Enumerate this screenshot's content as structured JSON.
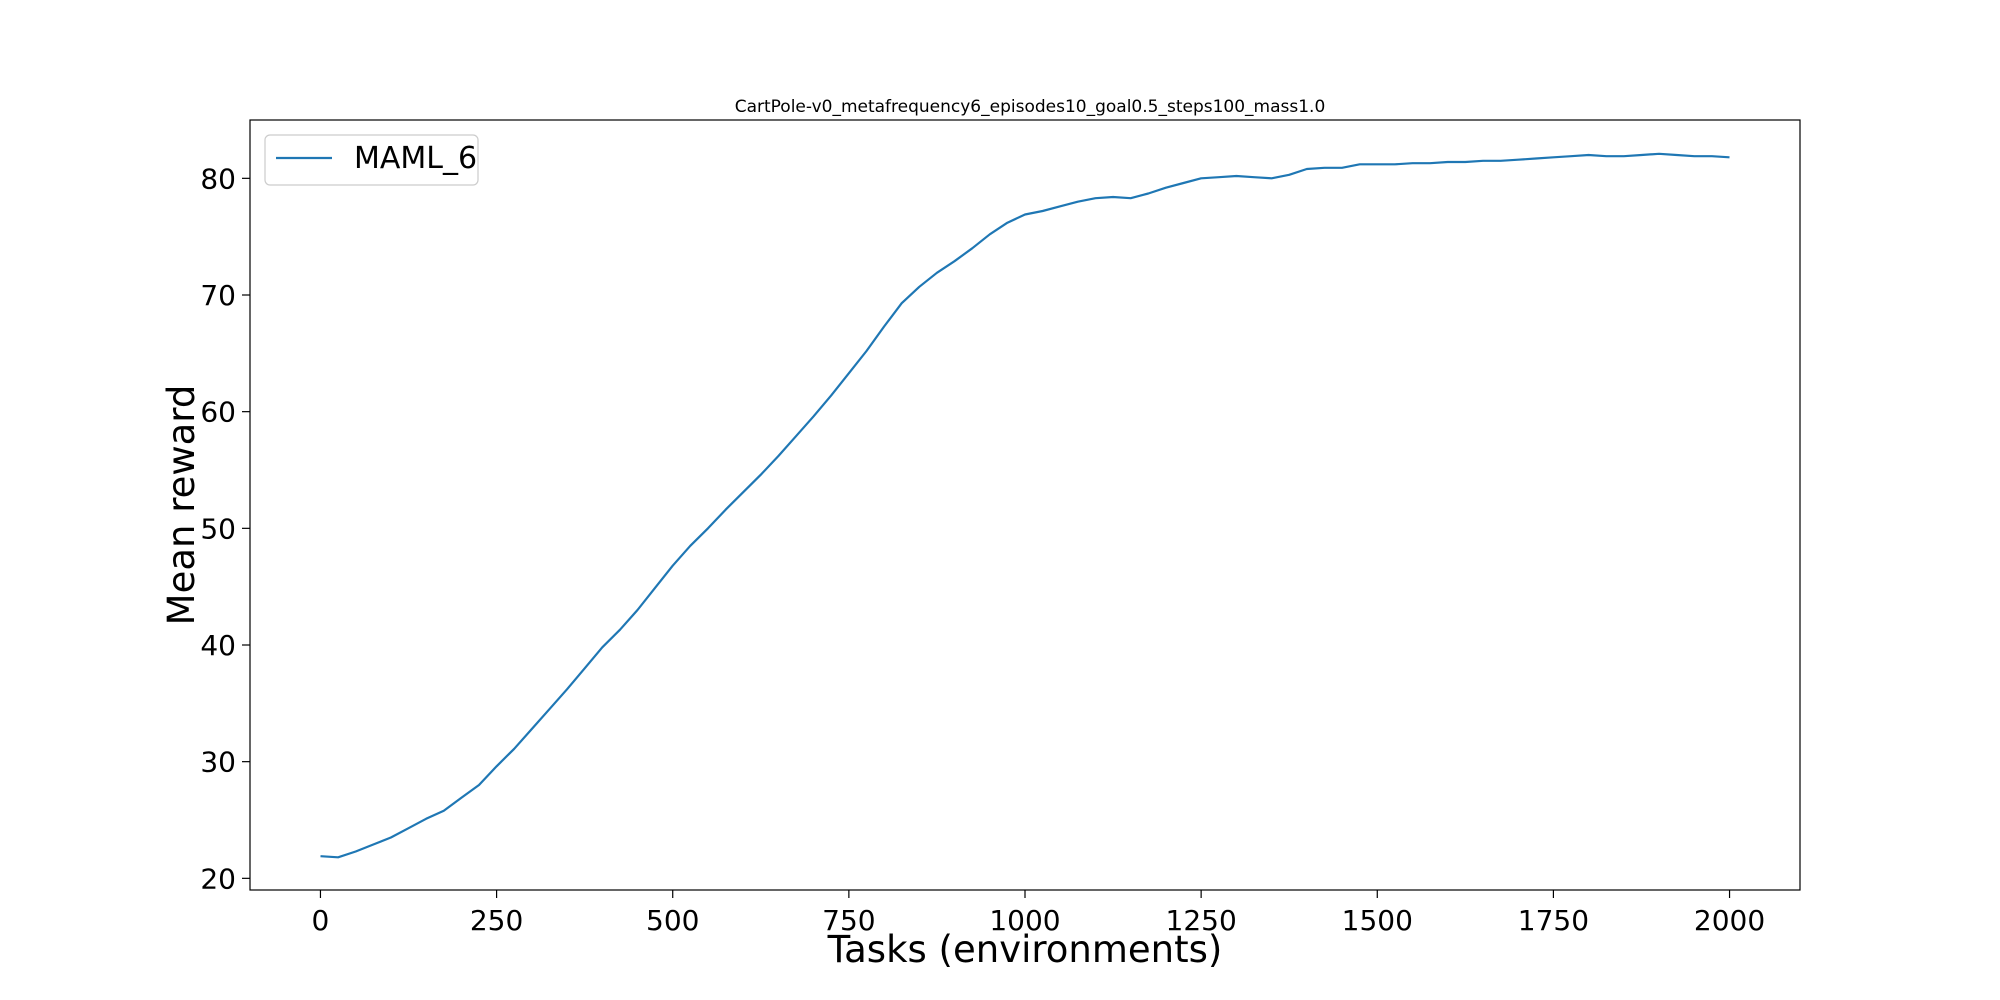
{
  "chart_data": {
    "type": "line",
    "title": "CartPole-v0_metafrequency6_episodes10_goal0.5_steps100_mass1.0",
    "xlabel": "Tasks (environments)",
    "ylabel": "Mean reward",
    "xlim": [
      -100,
      2100
    ],
    "ylim": [
      19,
      85
    ],
    "xticks": [
      0,
      250,
      500,
      750,
      1000,
      1250,
      1500,
      1750,
      2000
    ],
    "yticks": [
      20,
      30,
      40,
      50,
      60,
      70,
      80
    ],
    "grid": false,
    "legend_position": "upper left",
    "series": [
      {
        "name": "MAML_6",
        "color": "#1f77b4",
        "x": [
          0,
          25,
          50,
          75,
          100,
          125,
          150,
          175,
          200,
          225,
          250,
          275,
          300,
          325,
          350,
          375,
          400,
          425,
          450,
          475,
          500,
          525,
          550,
          575,
          600,
          625,
          650,
          675,
          700,
          725,
          750,
          775,
          800,
          825,
          850,
          875,
          900,
          925,
          950,
          975,
          1000,
          1025,
          1050,
          1075,
          1100,
          1125,
          1150,
          1175,
          1200,
          1225,
          1250,
          1275,
          1300,
          1325,
          1350,
          1375,
          1400,
          1425,
          1450,
          1475,
          1500,
          1525,
          1550,
          1575,
          1600,
          1625,
          1650,
          1675,
          1700,
          1725,
          1750,
          1775,
          1800,
          1825,
          1850,
          1875,
          1900,
          1925,
          1950,
          1975,
          2000
        ],
        "y": [
          21.9,
          21.8,
          22.3,
          22.9,
          23.5,
          24.3,
          25.1,
          25.8,
          26.9,
          28.0,
          29.6,
          31.1,
          32.8,
          34.5,
          36.2,
          38.0,
          39.8,
          41.3,
          43.0,
          44.9,
          46.8,
          48.5,
          50.0,
          51.6,
          53.1,
          54.6,
          56.2,
          57.9,
          59.6,
          61.4,
          63.3,
          65.2,
          67.3,
          69.3,
          70.7,
          71.9,
          72.9,
          74.0,
          75.2,
          76.2,
          76.9,
          77.2,
          77.6,
          78.0,
          78.3,
          78.4,
          78.3,
          78.7,
          79.2,
          79.6,
          80.0,
          80.1,
          80.2,
          80.1,
          80.0,
          80.3,
          80.8,
          80.9,
          80.9,
          81.2,
          81.2,
          81.2,
          81.3,
          81.3,
          81.4,
          81.4,
          81.5,
          81.5,
          81.6,
          81.7,
          81.8,
          81.9,
          82.0,
          81.9,
          81.9,
          82.0,
          82.1,
          82.0,
          81.9,
          81.9,
          81.8
        ]
      }
    ]
  }
}
